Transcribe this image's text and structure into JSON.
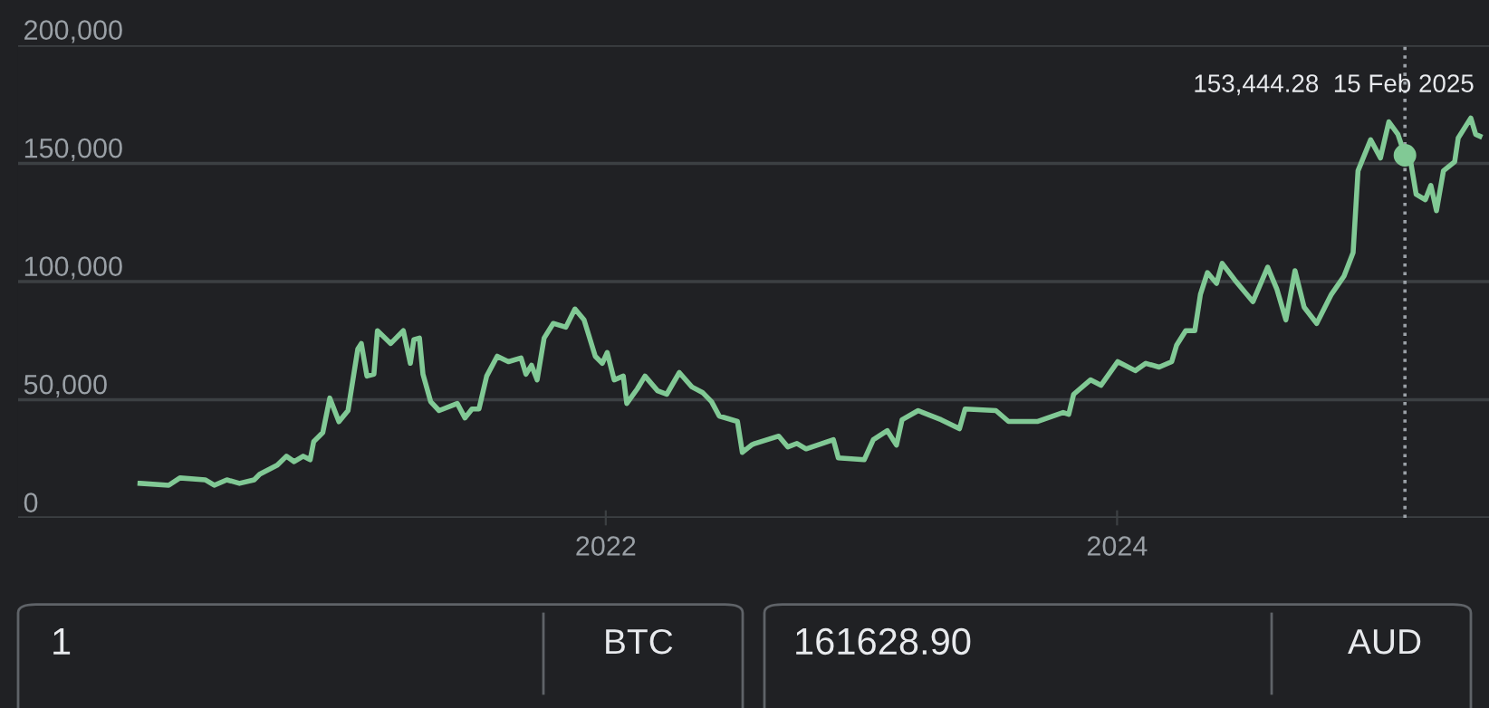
{
  "chart_data": {
    "type": "line",
    "x": [
      "2020-03-07",
      "2020-04-17",
      "2020-05-03",
      "2020-06-08",
      "2020-06-21",
      "2020-07-09",
      "2020-07-27",
      "2020-08-17",
      "2020-08-25",
      "2020-09-19",
      "2020-10-02",
      "2020-10-13",
      "2020-10-26",
      "2020-11-05",
      "2020-11-10",
      "2020-11-23",
      "2020-12-03",
      "2020-12-16",
      "2020-12-29",
      "2021-01-12",
      "2021-01-17",
      "2021-01-25",
      "2021-02-04",
      "2021-02-09",
      "2021-02-28",
      "2021-03-18",
      "2021-03-28",
      "2021-04-02",
      "2021-04-10",
      "2021-04-15",
      "2021-04-26",
      "2021-05-08",
      "2021-06-03",
      "2021-06-14",
      "2021-06-24",
      "2021-07-04",
      "2021-07-15",
      "2021-07-30",
      "2021-08-15",
      "2021-09-02",
      "2021-09-09",
      "2021-09-17",
      "2021-09-25",
      "2021-10-05",
      "2021-10-18",
      "2021-11-05",
      "2021-11-18",
      "2021-12-01",
      "2021-12-17",
      "2021-12-27",
      "2022-01-03",
      "2022-01-13",
      "2022-01-26",
      "2022-01-31",
      "2022-02-15",
      "2022-02-26",
      "2022-03-16",
      "2022-03-29",
      "2022-04-16",
      "2022-05-04",
      "2022-05-19",
      "2022-06-01",
      "2022-06-12",
      "2022-07-08",
      "2022-07-15",
      "2022-07-28",
      "2022-08-02",
      "2022-09-05",
      "2022-09-18",
      "2022-10-01",
      "2022-10-14",
      "2022-11-22",
      "2022-11-29",
      "2023-01-05",
      "2023-01-18",
      "2023-02-07",
      "2023-02-20",
      "2023-02-28",
      "2023-03-23",
      "2023-04-25",
      "2023-05-21",
      "2023-05-29",
      "2023-07-12",
      "2023-07-30",
      "2023-09-09",
      "2023-10-16",
      "2023-10-24",
      "2023-10-31",
      "2023-11-24",
      "2023-12-09",
      "2024-01-02",
      "2024-01-27",
      "2024-02-11",
      "2024-03-01",
      "2024-03-19",
      "2024-03-26",
      "2024-04-08",
      "2024-04-21",
      "2024-04-29",
      "2024-05-09",
      "2024-05-22",
      "2024-05-30",
      "2024-06-17",
      "2024-07-13",
      "2024-08-03",
      "2024-08-16",
      "2024-08-29",
      "2024-09-11",
      "2024-09-24",
      "2024-10-12",
      "2024-11-02",
      "2024-11-20",
      "2024-12-03",
      "2024-12-10",
      "2024-12-28",
      "2025-01-11",
      "2025-01-23",
      "2025-02-05",
      "2025-02-15",
      "2025-02-21",
      "2025-03-03",
      "2025-03-16",
      "2025-03-24",
      "2025-04-01",
      "2025-04-11",
      "2025-04-27",
      "2025-05-02",
      "2025-05-20",
      "2025-05-27",
      "2025-06-02"
    ],
    "series": [
      {
        "color": "#81c995",
        "values": [
          14600,
          13800,
          16900,
          16100,
          13800,
          16100,
          14600,
          16100,
          18500,
          22300,
          26100,
          23800,
          26100,
          24600,
          32300,
          36100,
          50700,
          40700,
          45400,
          71500,
          73800,
          60000,
          60800,
          79200,
          73800,
          79200,
          65400,
          75400,
          76100,
          60800,
          49200,
          45400,
          48400,
          42300,
          46100,
          46100,
          60000,
          68400,
          66100,
          67700,
          60800,
          64600,
          58400,
          76100,
          82300,
          80700,
          88400,
          83800,
          68400,
          65400,
          70000,
          58400,
          60000,
          48400,
          54600,
          60000,
          53800,
          52300,
          61500,
          55400,
          53100,
          49200,
          43100,
          40800,
          27700,
          30800,
          31500,
          34600,
          30000,
          31500,
          29200,
          33100,
          25400,
          24600,
          33100,
          36900,
          30800,
          41500,
          45400,
          41500,
          37700,
          46100,
          45400,
          40800,
          40800,
          44600,
          43800,
          52300,
          58400,
          56100,
          66100,
          62300,
          65400,
          63800,
          66100,
          73100,
          79200,
          79200,
          94600,
          103800,
          99200,
          107700,
          100700,
          91500,
          106100,
          96900,
          83800,
          104600,
          89200,
          82300,
          94600,
          102300,
          112300,
          146900,
          160000,
          152300,
          167600,
          162300,
          153400,
          154600,
          136900,
          134600,
          140700,
          130000,
          146900,
          150700,
          160700,
          169200,
          162300,
          161500
        ]
      }
    ],
    "xlim": [
      "2019-09-15",
      "2025-06-15"
    ],
    "xticks": [
      {
        "value": "2022-01-01",
        "label": "2022"
      },
      {
        "value": "2024-01-01",
        "label": "2024"
      }
    ],
    "ylim": [
      0,
      200000
    ],
    "yticks": [
      {
        "value": 0,
        "label": "0"
      },
      {
        "value": 50000,
        "label": "50,000"
      },
      {
        "value": 100000,
        "label": "100,000"
      },
      {
        "value": 150000,
        "label": "150,000"
      },
      {
        "value": 200000,
        "label": "200,000"
      }
    ],
    "grid": "y",
    "ref_lines": [
      {
        "axis": "x",
        "value": "2025-02-15",
        "color": "#9aa0a6",
        "line_style": "dotted"
      }
    ],
    "annotations": [
      {
        "text": "153,444.28  15 Feb 2025",
        "x": "2025-02-15",
        "y": 153444.28
      },
      "1",
      "BTC",
      "161628.90",
      "AUD"
    ]
  }
}
